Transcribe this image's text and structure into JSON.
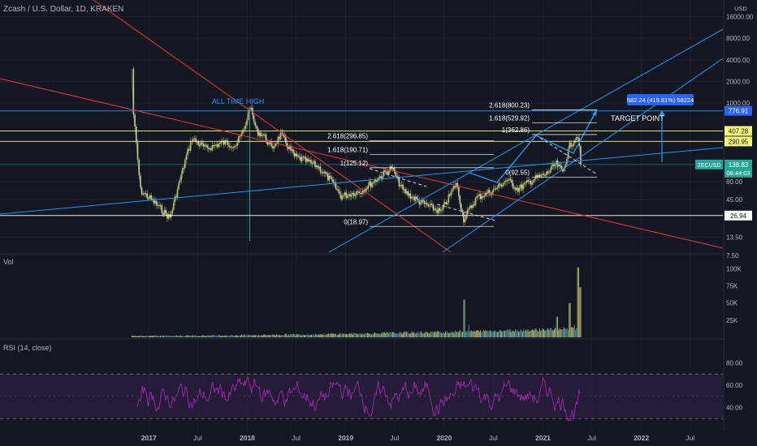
{
  "header": {
    "title": "Zcash / U.S. Dollar, 1D, KRAKEN"
  },
  "panes": {
    "volume_title": "Vol",
    "rsi_title": "RSI (14, close)"
  },
  "colors": {
    "background": "#131722",
    "grid": "#1e222d",
    "axis_text": "#b2b5be",
    "candle_up": "#b7b76a",
    "candle_down": "#c8c8a0",
    "volume": "#b7b76a",
    "rsi_line": "#9c27b0",
    "rsi_band": "#2a1f3d",
    "red_line": "#e53935",
    "blue_line": "#2196f3",
    "yellow_line": "#f5f57a",
    "white_line": "#ffffff",
    "label_blue": "#2962ff",
    "label_teal": "#26a69a"
  },
  "chart_data": [
    {
      "type": "line",
      "title": "Zcash / U.S. Dollar, 1D, KRAKEN",
      "scale": "log",
      "y_unit": "USD",
      "y_ticks": [
        "16000.00",
        "8000.00",
        "4000.00",
        "2000.00",
        "1000.00",
        "80.00",
        "45.00",
        "13.50",
        "7.50"
      ],
      "x_ticks": [
        "2017",
        "Jul",
        "2018",
        "Jul",
        "2019",
        "Jul",
        "2020",
        "Jul",
        "2021",
        "Jul",
        "2022",
        "Jul"
      ],
      "x_dates": [
        "2017-01-01",
        "2017-07-01",
        "2018-01-01",
        "2018-07-01",
        "2019-01-01",
        "2019-07-01",
        "2020-01-01",
        "2020-07-01",
        "2021-01-01",
        "2021-07-01",
        "2022-01-01",
        "2022-07-01"
      ],
      "price_path": {
        "dates": [
          "2016-10-29",
          "2016-11-05",
          "2016-12-01",
          "2017-01-10",
          "2017-03-20",
          "2017-05-20",
          "2017-06-10",
          "2017-08-01",
          "2017-10-01",
          "2017-11-20",
          "2017-12-20",
          "2018-01-10",
          "2018-02-05",
          "2018-03-01",
          "2018-04-01",
          "2018-05-05",
          "2018-06-25",
          "2018-08-15",
          "2018-09-20",
          "2018-11-10",
          "2018-12-15",
          "2019-03-01",
          "2019-06-20",
          "2019-08-01",
          "2019-10-01",
          "2019-12-20",
          "2020-02-15",
          "2020-03-13",
          "2020-05-01",
          "2020-07-01",
          "2020-08-20",
          "2020-10-01",
          "2020-12-01",
          "2021-01-10",
          "2021-02-20",
          "2021-03-15",
          "2021-04-10",
          "2021-05-10",
          "2021-05-21"
        ],
        "close": [
          3000,
          700,
          60,
          45,
          25,
          180,
          320,
          230,
          280,
          260,
          420,
          900,
          400,
          360,
          230,
          360,
          180,
          150,
          130,
          80,
          50,
          60,
          125,
          60,
          42,
          30,
          76,
          24,
          48,
          60,
          85,
          63,
          88,
          100,
          140,
          110,
          250,
          362,
          138.83
        ]
      },
      "horizontal_levels": [
        {
          "label": "776.91",
          "color": "#2196f3"
        },
        {
          "label": "407.28",
          "color": "#f5f57a"
        },
        {
          "label": "290.95",
          "color": "#f5f57a"
        },
        {
          "label": "138.83",
          "color": "#26a69a"
        },
        {
          "label": "26.94",
          "color": "#ffffff"
        }
      ],
      "fib_left": [
        {
          "label": "2.618(296.85)"
        },
        {
          "label": "1.618(190.71)"
        },
        {
          "label": "1(125.12)"
        },
        {
          "label": "0(18.97)"
        }
      ],
      "fib_right": [
        {
          "label": "2.618(800.23)"
        },
        {
          "label": "1.618(529.92)"
        },
        {
          "label": "1(362.86)"
        },
        {
          "label": "0(92.55)"
        }
      ],
      "annotations": {
        "ath": "ALL TIME HIGH",
        "target": "TARGET POINT",
        "measure": "582.24 (419.81%) 58224",
        "price_badge": "ZECUSD",
        "price_value": "138.83",
        "countdown": "08:44:03"
      }
    },
    {
      "type": "bar",
      "title": "Vol",
      "y_ticks": [
        "100K",
        "75K",
        "50K",
        "25K"
      ],
      "ylim": [
        0,
        110000
      ],
      "peak_values": [
        {
          "date": "2020-03-13",
          "value": 55000
        },
        {
          "date": "2021-02-20",
          "value": 30000
        },
        {
          "date": "2021-04-10",
          "value": 50000
        },
        {
          "date": "2021-05-11",
          "value": 102000
        },
        {
          "date": "2021-05-19",
          "value": 73000
        }
      ]
    },
    {
      "type": "line",
      "title": "RSI (14, close)",
      "y_ticks": [
        "80.00",
        "60.00",
        "40.00"
      ],
      "ylim": [
        20,
        100
      ],
      "band": [
        30,
        70
      ]
    }
  ]
}
